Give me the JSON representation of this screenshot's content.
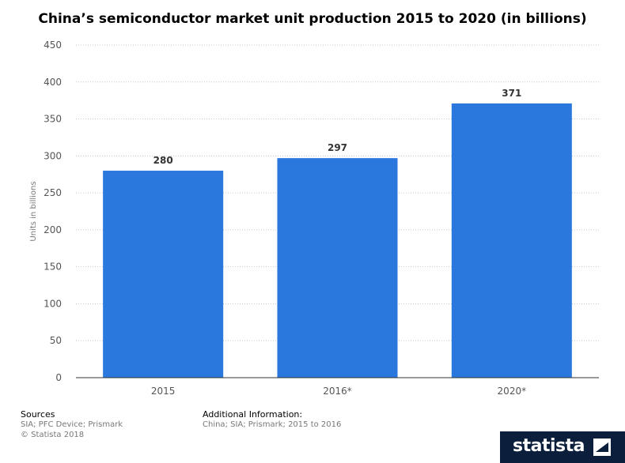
{
  "chart_data": {
    "type": "bar",
    "title": "China’s semiconductor market unit production 2015 to 2020 (in billions)",
    "categories": [
      "2015",
      "2016*",
      "2020*"
    ],
    "values": [
      280,
      297,
      371
    ],
    "data_labels": [
      "280",
      "297",
      "371"
    ],
    "ylabel": "Units in billions",
    "ylim": [
      0,
      450
    ],
    "yticks": [
      "0",
      "50",
      "100",
      "150",
      "200",
      "250",
      "300",
      "350",
      "400",
      "450"
    ],
    "grid": true,
    "bar_color": "#2a77dd"
  },
  "footer": {
    "sources_heading": "Sources",
    "sources_text": "SIA; PFC Device; Prismark",
    "copyright": "© Statista 2018",
    "additional_heading": "Additional Information:",
    "additional_text": "China; SIA; Prismark; 2015 to 2016"
  },
  "brand": {
    "name": "statista",
    "bar_color": "#0b1e3b"
  }
}
